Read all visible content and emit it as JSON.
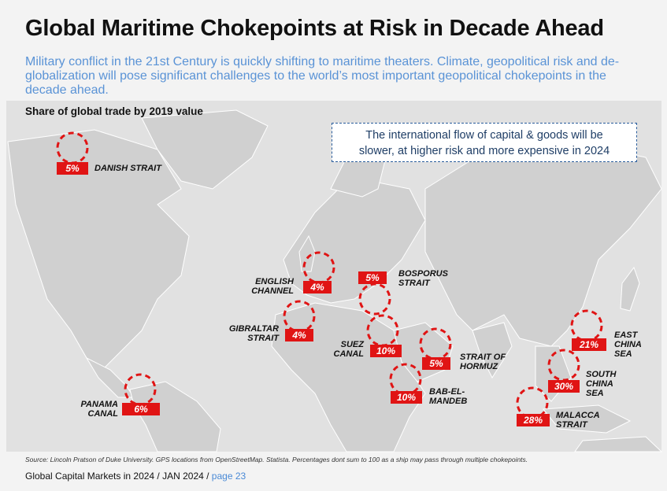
{
  "title": "Global Maritime Chokepoints at Risk in Decade Ahead",
  "subtitle": "Military conflict in the 21st Century is quickly shifting to maritime theaters.  Climate, geopolitical risk and de-globalization will pose significant challenges to the world’s most important geopolitical chokepoints in the decade ahead.",
  "share_label": "Share of global trade by 2019 value",
  "callout": {
    "line1": "The international flow of capital & goods will be",
    "line2": "slower, at higher risk and more expensive in 2024"
  },
  "chokepoints": [
    {
      "name_line1": "DANISH STRAIT",
      "name_line2": "",
      "name_line3": "",
      "value": "5%"
    },
    {
      "name_line1": "ENGLISH",
      "name_line2": "CHANNEL",
      "name_line3": "",
      "value": "4%"
    },
    {
      "name_line1": "GIBRALTAR",
      "name_line2": "STRAIT",
      "name_line3": "",
      "value": "4%"
    },
    {
      "name_line1": "BOSPORUS",
      "name_line2": "STRAIT",
      "name_line3": "",
      "value": "5%"
    },
    {
      "name_line1": "SUEZ",
      "name_line2": "CANAL",
      "name_line3": "",
      "value": "10%"
    },
    {
      "name_line1": "STRAIT OF",
      "name_line2": "HORMUZ",
      "name_line3": "",
      "value": "5%"
    },
    {
      "name_line1": "BAB-EL-",
      "name_line2": "MANDEB",
      "name_line3": "",
      "value": "10%"
    },
    {
      "name_line1": "PANAMA",
      "name_line2": "CANAL",
      "name_line3": "",
      "value": "6%"
    },
    {
      "name_line1": "EAST",
      "name_line2": "CHINA",
      "name_line3": "SEA",
      "value": "21%"
    },
    {
      "name_line1": "SOUTH",
      "name_line2": "CHINA",
      "name_line3": "SEA",
      "value": "30%"
    },
    {
      "name_line1": "MALACCA",
      "name_line2": "STRAIT",
      "name_line3": "",
      "value": "28%"
    }
  ],
  "source": "Source: Lincoln Pratson of Duke University. GPS locations from OpenStreetMap. Statista. Percentages dont sum to 100 as a ship may pass through multiple chokepoints.",
  "footer": {
    "text": "Global Capital Markets in 2024 / JAN 2024 / ",
    "page": "page 23"
  },
  "colors": {
    "accent_red": "#e01414",
    "subtitle_blue": "#5a93d6",
    "land": "#d2d2d2"
  }
}
